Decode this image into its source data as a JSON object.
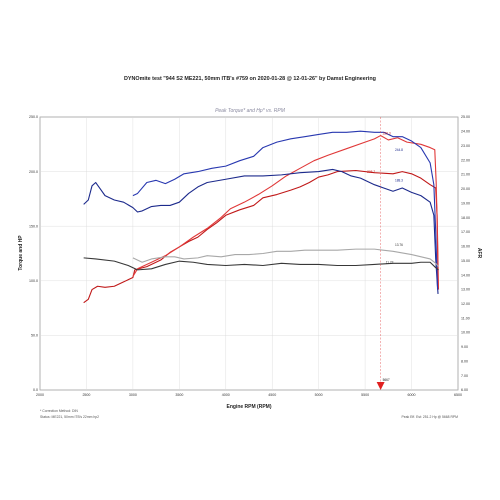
{
  "chart_data": {
    "type": "line",
    "title": "DYNOmite test \"944 S2 ME221, 50mm ITB's #759 on 2020-01-28 @ 12-01-26\" by Damst Engineering",
    "subtitle": "Peak Torque* and Hp* vs. RPM",
    "xlabel": "Engine RPM (RPM)",
    "ylabel": "Torque and HP",
    "ylabel_right": "AFR",
    "xlim": [
      2000,
      6500
    ],
    "ylim": [
      0,
      250
    ],
    "ylim_right": [
      6.0,
      25.0
    ],
    "x_ticks": [
      "2000",
      "2500",
      "3000",
      "3500",
      "4000",
      "4500",
      "5000",
      "5500",
      "6000",
      "6500"
    ],
    "y_ticks": [
      "0.0",
      "50.0",
      "100.0",
      "150.0",
      "200.0",
      "250.0"
    ],
    "y2_ticks": [
      "6.00",
      "7.00",
      "8.00",
      "9.00",
      "10.00",
      "11.00",
      "12.00",
      "13.00",
      "14.00",
      "15.00",
      "16.00",
      "17.00",
      "18.00",
      "19.00",
      "20.00",
      "21.00",
      "22.00",
      "23.00",
      "24.00",
      "25.00"
    ],
    "grid": true,
    "marker": {
      "x": 5667,
      "label": "5667"
    },
    "series": [
      {
        "key": "hp_dark_red",
        "color": "#c01818",
        "data": [
          [
            2470,
            80
          ],
          [
            2520,
            83
          ],
          [
            2560,
            92
          ],
          [
            2620,
            95
          ],
          [
            2700,
            94
          ],
          [
            2800,
            95
          ],
          [
            2900,
            99
          ],
          [
            3000,
            103
          ],
          [
            3020,
            110
          ],
          [
            3150,
            113
          ],
          [
            3300,
            119
          ],
          [
            3400,
            126
          ],
          [
            3500,
            131
          ],
          [
            3600,
            136
          ],
          [
            3700,
            140
          ],
          [
            3800,
            147
          ],
          [
            3900,
            153
          ],
          [
            4000,
            160
          ],
          [
            4150,
            165
          ],
          [
            4300,
            169
          ],
          [
            4400,
            176
          ],
          [
            4550,
            179
          ],
          [
            4700,
            183
          ],
          [
            4800,
            186
          ],
          [
            4900,
            190
          ],
          [
            5000,
            195
          ],
          [
            5100,
            197
          ],
          [
            5200,
            200
          ],
          [
            5400,
            201
          ],
          [
            5600,
            199
          ],
          [
            5800,
            198
          ],
          [
            5900,
            200
          ],
          [
            6000,
            198
          ],
          [
            6100,
            194
          ],
          [
            6200,
            188
          ],
          [
            6260,
            185
          ],
          [
            6275,
            160
          ],
          [
            6285,
            100
          ],
          [
            6290,
            92
          ]
        ]
      },
      {
        "key": "hp_light_red",
        "color": "#e03838",
        "data": [
          [
            3000,
            104
          ],
          [
            3050,
            111
          ],
          [
            3200,
            117
          ],
          [
            3350,
            123
          ],
          [
            3500,
            131
          ],
          [
            3650,
            140
          ],
          [
            3800,
            148
          ],
          [
            3950,
            158
          ],
          [
            4050,
            166
          ],
          [
            4200,
            172
          ],
          [
            4350,
            179
          ],
          [
            4500,
            187
          ],
          [
            4650,
            196
          ],
          [
            4800,
            203
          ],
          [
            4950,
            210
          ],
          [
            5100,
            215
          ],
          [
            5300,
            221
          ],
          [
            5500,
            227
          ],
          [
            5600,
            230
          ],
          [
            5667,
            233
          ],
          [
            5750,
            229
          ],
          [
            5850,
            231
          ],
          [
            5950,
            227
          ],
          [
            6100,
            225
          ],
          [
            6200,
            222
          ],
          [
            6250,
            220
          ],
          [
            6265,
            190
          ],
          [
            6280,
            140
          ],
          [
            6290,
            92
          ]
        ]
      },
      {
        "key": "tq_dark_blue",
        "color": "#1c2a8c",
        "data": [
          [
            2470,
            170
          ],
          [
            2520,
            174
          ],
          [
            2560,
            187
          ],
          [
            2600,
            190
          ],
          [
            2650,
            184
          ],
          [
            2700,
            178
          ],
          [
            2800,
            174
          ],
          [
            2900,
            172
          ],
          [
            3000,
            167
          ],
          [
            3050,
            163
          ],
          [
            3100,
            164
          ],
          [
            3200,
            168
          ],
          [
            3300,
            169
          ],
          [
            3400,
            169
          ],
          [
            3500,
            172
          ],
          [
            3600,
            180
          ],
          [
            3700,
            186
          ],
          [
            3800,
            190
          ],
          [
            4000,
            193
          ],
          [
            4200,
            196
          ],
          [
            4400,
            196
          ],
          [
            4600,
            197
          ],
          [
            4800,
            199
          ],
          [
            5000,
            200
          ],
          [
            5150,
            202
          ],
          [
            5250,
            200
          ],
          [
            5350,
            196
          ],
          [
            5450,
            194
          ],
          [
            5600,
            188
          ],
          [
            5700,
            185
          ],
          [
            5800,
            182
          ],
          [
            5900,
            185
          ],
          [
            6000,
            181
          ],
          [
            6100,
            178
          ],
          [
            6200,
            172
          ],
          [
            6240,
            160
          ],
          [
            6260,
            120
          ],
          [
            6275,
            100
          ],
          [
            6285,
            88
          ]
        ]
      },
      {
        "key": "tq_blue",
        "color": "#2838b0",
        "data": [
          [
            3000,
            178
          ],
          [
            3050,
            180
          ],
          [
            3150,
            190
          ],
          [
            3250,
            192
          ],
          [
            3350,
            189
          ],
          [
            3450,
            193
          ],
          [
            3550,
            198
          ],
          [
            3700,
            200
          ],
          [
            3850,
            203
          ],
          [
            4000,
            205
          ],
          [
            4150,
            210
          ],
          [
            4300,
            214
          ],
          [
            4400,
            222
          ],
          [
            4550,
            227
          ],
          [
            4700,
            230
          ],
          [
            4850,
            232
          ],
          [
            5000,
            234
          ],
          [
            5150,
            236
          ],
          [
            5300,
            236
          ],
          [
            5450,
            237
          ],
          [
            5600,
            236
          ],
          [
            5700,
            236
          ],
          [
            5800,
            232
          ],
          [
            5900,
            232
          ],
          [
            6000,
            228
          ],
          [
            6100,
            222
          ],
          [
            6200,
            208
          ],
          [
            6240,
            188
          ],
          [
            6260,
            145
          ],
          [
            6280,
            92
          ]
        ]
      },
      {
        "key": "afr_dark",
        "color": "#383838",
        "data": [
          [
            2470,
            121
          ],
          [
            2600,
            120
          ],
          [
            2800,
            118
          ],
          [
            2950,
            114
          ],
          [
            3050,
            110
          ],
          [
            3200,
            111
          ],
          [
            3350,
            115
          ],
          [
            3500,
            118
          ],
          [
            3650,
            117
          ],
          [
            3800,
            115
          ],
          [
            4000,
            114
          ],
          [
            4200,
            115
          ],
          [
            4400,
            114
          ],
          [
            4600,
            116
          ],
          [
            4800,
            115
          ],
          [
            5000,
            115
          ],
          [
            5200,
            114
          ],
          [
            5400,
            114
          ],
          [
            5600,
            115
          ],
          [
            5800,
            116
          ],
          [
            6000,
            116
          ],
          [
            6100,
            117
          ],
          [
            6200,
            117
          ],
          [
            6260,
            112
          ],
          [
            6290,
            110
          ]
        ]
      },
      {
        "key": "afr_gray",
        "color": "#a8a8a8",
        "data": [
          [
            3000,
            121
          ],
          [
            3100,
            117
          ],
          [
            3200,
            120
          ],
          [
            3350,
            122
          ],
          [
            3450,
            122
          ],
          [
            3550,
            120
          ],
          [
            3700,
            121
          ],
          [
            3800,
            123
          ],
          [
            3950,
            122
          ],
          [
            4100,
            124
          ],
          [
            4250,
            124
          ],
          [
            4400,
            125
          ],
          [
            4550,
            127
          ],
          [
            4700,
            127
          ],
          [
            4850,
            128
          ],
          [
            5000,
            128
          ],
          [
            5200,
            128
          ],
          [
            5400,
            129
          ],
          [
            5600,
            129
          ],
          [
            5800,
            127
          ],
          [
            6000,
            124
          ],
          [
            6200,
            120
          ],
          [
            6260,
            116
          ],
          [
            6290,
            113
          ]
        ]
      }
    ],
    "data_labels": [
      {
        "x": 5667,
        "y": 233,
        "text": "228.3",
        "color": "#c01818"
      },
      {
        "x": 5800,
        "y": 218,
        "text": "244.8",
        "color": "#1c2a8c"
      },
      {
        "x": 5500,
        "y": 198,
        "text": "208.7",
        "color": "#c01818"
      },
      {
        "x": 5800,
        "y": 190,
        "text": "188.3",
        "color": "#1c2a8c"
      },
      {
        "x": 5800,
        "y": 131,
        "text": "13.76",
        "color": "#333333"
      },
      {
        "x": 5700,
        "y": 115,
        "text": "11.23",
        "color": "#333333"
      }
    ]
  },
  "footer": {
    "left_line1": "* Correction Method: DIN",
    "left_line2": "Status: ME221, 50mm ITB's 22mm hp2",
    "right": "Peak Eff. Est: 251.2 Hp @ 5668 RPM"
  }
}
